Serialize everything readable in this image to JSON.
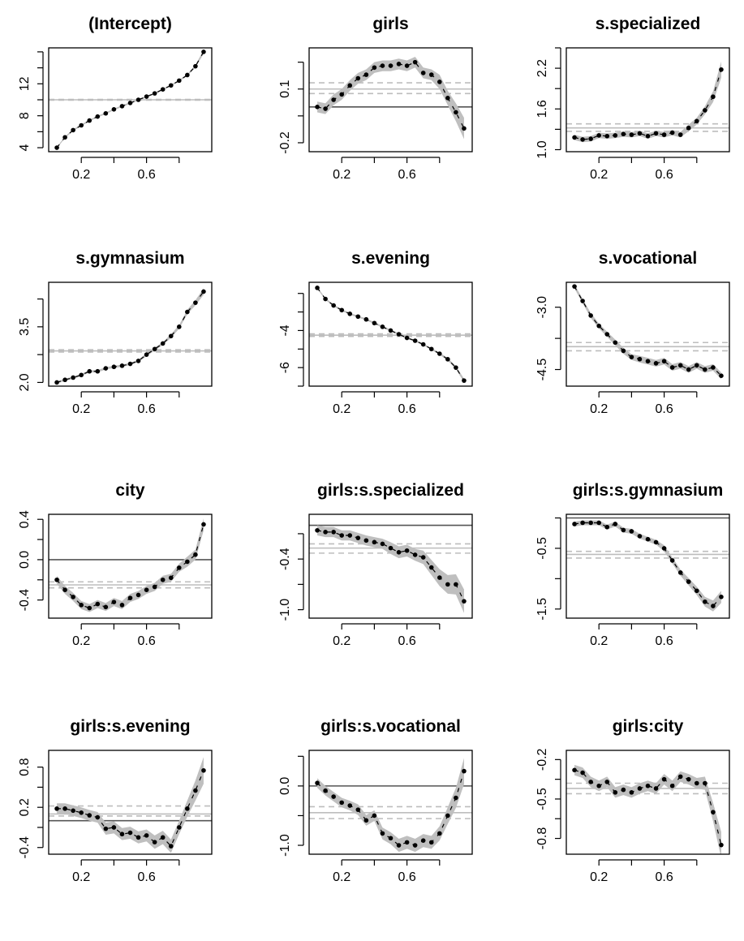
{
  "chart_data": [
    {
      "type": "line",
      "title": "(Intercept)",
      "xlim": [
        0,
        1
      ],
      "ylim": [
        3.5,
        16.5
      ],
      "xticks": [
        0.2,
        0.6
      ],
      "yticks": [
        4,
        8,
        12
      ],
      "ytick_labels": [
        "4",
        "8",
        "12"
      ],
      "ref_lines": {
        "zero": null,
        "estimate": 10.0,
        "ci": [
          9.95,
          10.05
        ]
      },
      "x": [
        0.05,
        0.1,
        0.15,
        0.2,
        0.25,
        0.3,
        0.35,
        0.4,
        0.45,
        0.5,
        0.55,
        0.6,
        0.65,
        0.7,
        0.75,
        0.8,
        0.85,
        0.9,
        0.95
      ],
      "values": [
        4.0,
        5.3,
        6.2,
        6.8,
        7.4,
        7.9,
        8.3,
        8.8,
        9.2,
        9.6,
        10.0,
        10.4,
        10.8,
        11.3,
        11.8,
        12.4,
        13.1,
        14.2,
        16.0
      ],
      "band_halfwidth": [
        0.1,
        0.1,
        0.1,
        0.1,
        0.1,
        0.1,
        0.1,
        0.1,
        0.1,
        0.1,
        0.1,
        0.1,
        0.1,
        0.1,
        0.1,
        0.1,
        0.1,
        0.15,
        0.25
      ]
    },
    {
      "type": "line",
      "title": "girls",
      "xlim": [
        0,
        1
      ],
      "ylim": [
        -0.25,
        0.33
      ],
      "xticks": [
        0.2,
        0.6
      ],
      "yticks": [
        -0.2,
        0.1
      ],
      "ytick_labels": [
        "-0.2",
        "0.1"
      ],
      "ref_lines": {
        "zero": 0,
        "estimate": 0.1,
        "ci": [
          0.075,
          0.135
        ]
      },
      "x": [
        0.05,
        0.1,
        0.15,
        0.2,
        0.25,
        0.3,
        0.35,
        0.4,
        0.45,
        0.5,
        0.55,
        0.6,
        0.65,
        0.7,
        0.75,
        0.8,
        0.85,
        0.9,
        0.95
      ],
      "values": [
        0.0,
        -0.01,
        0.04,
        0.07,
        0.12,
        0.16,
        0.18,
        0.22,
        0.23,
        0.23,
        0.24,
        0.23,
        0.25,
        0.19,
        0.18,
        0.14,
        0.05,
        -0.03,
        -0.12
      ],
      "band_halfwidth": [
        0.03,
        0.03,
        0.03,
        0.03,
        0.03,
        0.03,
        0.03,
        0.03,
        0.03,
        0.03,
        0.03,
        0.03,
        0.03,
        0.03,
        0.03,
        0.04,
        0.04,
        0.05,
        0.06
      ]
    },
    {
      "type": "line",
      "title": "s.specialized",
      "xlim": [
        0,
        1
      ],
      "ylim": [
        0.97,
        2.5
      ],
      "xticks": [
        0.2,
        0.6
      ],
      "yticks": [
        1.0,
        1.6,
        2.2
      ],
      "ytick_labels": [
        "1.0",
        "1.6",
        "2.2"
      ],
      "ref_lines": {
        "zero": null,
        "estimate": 1.32,
        "ci": [
          1.27,
          1.38
        ]
      },
      "x": [
        0.05,
        0.1,
        0.15,
        0.2,
        0.25,
        0.3,
        0.35,
        0.4,
        0.45,
        0.5,
        0.55,
        0.6,
        0.65,
        0.7,
        0.75,
        0.8,
        0.85,
        0.9,
        0.95
      ],
      "values": [
        1.18,
        1.15,
        1.16,
        1.21,
        1.2,
        1.21,
        1.23,
        1.22,
        1.24,
        1.2,
        1.24,
        1.22,
        1.25,
        1.22,
        1.32,
        1.42,
        1.58,
        1.78,
        2.18
      ],
      "band_halfwidth": [
        0.04,
        0.04,
        0.04,
        0.04,
        0.04,
        0.04,
        0.04,
        0.04,
        0.04,
        0.04,
        0.04,
        0.04,
        0.04,
        0.04,
        0.05,
        0.05,
        0.06,
        0.08,
        0.12
      ]
    },
    {
      "type": "line",
      "title": "s.gymnasium",
      "xlim": [
        0,
        1
      ],
      "ylim": [
        1.9,
        4.7
      ],
      "xticks": [
        0.2,
        0.6
      ],
      "yticks": [
        2.0,
        3.5
      ],
      "ytick_labels": [
        "2.0",
        "3.5"
      ],
      "ref_lines": {
        "zero": null,
        "estimate": 2.85,
        "ci": [
          2.82,
          2.88
        ]
      },
      "x": [
        0.05,
        0.1,
        0.15,
        0.2,
        0.25,
        0.3,
        0.35,
        0.4,
        0.45,
        0.5,
        0.55,
        0.6,
        0.65,
        0.7,
        0.75,
        0.8,
        0.85,
        0.9,
        0.95
      ],
      "values": [
        2.0,
        2.07,
        2.13,
        2.2,
        2.3,
        2.3,
        2.38,
        2.42,
        2.45,
        2.5,
        2.58,
        2.75,
        2.9,
        3.05,
        3.25,
        3.5,
        3.9,
        4.15,
        4.45
      ],
      "band_halfwidth": [
        0.03,
        0.03,
        0.03,
        0.03,
        0.03,
        0.03,
        0.03,
        0.03,
        0.03,
        0.03,
        0.03,
        0.04,
        0.04,
        0.04,
        0.05,
        0.05,
        0.06,
        0.07,
        0.09
      ]
    },
    {
      "type": "line",
      "title": "s.evening",
      "xlim": [
        0,
        1
      ],
      "ylim": [
        -7.0,
        -1.4
      ],
      "xticks": [
        0.2,
        0.6
      ],
      "yticks": [
        -6,
        -4
      ],
      "ytick_labels": [
        "-6",
        "-4"
      ],
      "ref_lines": {
        "zero": null,
        "estimate": -4.25,
        "ci": [
          -4.32,
          -4.18
        ]
      },
      "x": [
        0.05,
        0.1,
        0.15,
        0.2,
        0.25,
        0.3,
        0.35,
        0.4,
        0.45,
        0.5,
        0.55,
        0.6,
        0.65,
        0.7,
        0.75,
        0.8,
        0.85,
        0.9,
        0.95
      ],
      "values": [
        -1.7,
        -2.3,
        -2.65,
        -2.9,
        -3.1,
        -3.25,
        -3.4,
        -3.6,
        -3.8,
        -4.0,
        -4.2,
        -4.4,
        -4.55,
        -4.75,
        -5.0,
        -5.25,
        -5.55,
        -6.0,
        -6.7
      ],
      "band_halfwidth": [
        0.05,
        0.05,
        0.05,
        0.05,
        0.05,
        0.05,
        0.05,
        0.05,
        0.05,
        0.05,
        0.05,
        0.05,
        0.05,
        0.05,
        0.05,
        0.06,
        0.07,
        0.08,
        0.1
      ]
    },
    {
      "type": "line",
      "title": "s.vocational",
      "xlim": [
        0,
        1
      ],
      "ylim": [
        -4.9,
        -2.4
      ],
      "xticks": [
        0.2,
        0.6
      ],
      "yticks": [
        -4.5,
        -3.0
      ],
      "ytick_labels": [
        "-4.5",
        "-3.0"
      ],
      "ref_lines": {
        "zero": null,
        "estimate": -3.95,
        "ci": [
          -4.05,
          -3.85
        ]
      },
      "x": [
        0.05,
        0.1,
        0.15,
        0.2,
        0.25,
        0.3,
        0.35,
        0.4,
        0.45,
        0.5,
        0.55,
        0.6,
        0.65,
        0.7,
        0.75,
        0.8,
        0.85,
        0.9,
        0.95
      ],
      "values": [
        -2.5,
        -2.85,
        -3.2,
        -3.45,
        -3.65,
        -3.85,
        -4.05,
        -4.2,
        -4.25,
        -4.3,
        -4.35,
        -4.3,
        -4.45,
        -4.4,
        -4.5,
        -4.4,
        -4.5,
        -4.45,
        -4.65
      ],
      "band_halfwidth": [
        0.05,
        0.05,
        0.06,
        0.06,
        0.06,
        0.07,
        0.07,
        0.07,
        0.08,
        0.08,
        0.08,
        0.08,
        0.08,
        0.08,
        0.08,
        0.08,
        0.08,
        0.08,
        0.08
      ]
    },
    {
      "type": "line",
      "title": "city",
      "xlim": [
        0,
        1
      ],
      "ylim": [
        -0.58,
        0.45
      ],
      "xticks": [
        0.2,
        0.6
      ],
      "yticks": [
        -0.4,
        0.0,
        0.4
      ],
      "ytick_labels": [
        "-0.4",
        "0.0",
        "0.4"
      ],
      "ref_lines": {
        "zero": 0,
        "estimate": -0.25,
        "ci": [
          -0.28,
          -0.22
        ]
      },
      "x": [
        0.05,
        0.1,
        0.15,
        0.2,
        0.25,
        0.3,
        0.35,
        0.4,
        0.45,
        0.5,
        0.55,
        0.6,
        0.65,
        0.7,
        0.75,
        0.8,
        0.85,
        0.9,
        0.95
      ],
      "values": [
        -0.2,
        -0.3,
        -0.37,
        -0.45,
        -0.48,
        -0.44,
        -0.47,
        -0.42,
        -0.45,
        -0.38,
        -0.35,
        -0.3,
        -0.27,
        -0.2,
        -0.18,
        -0.08,
        -0.02,
        0.05,
        0.35
      ],
      "band_halfwidth": [
        0.04,
        0.04,
        0.04,
        0.04,
        0.04,
        0.04,
        0.04,
        0.04,
        0.04,
        0.04,
        0.04,
        0.04,
        0.04,
        0.04,
        0.04,
        0.04,
        0.05,
        0.05,
        0.06
      ]
    },
    {
      "type": "line",
      "title": "girls:s.specialized",
      "xlim": [
        0,
        1
      ],
      "ylim": [
        -1.1,
        0.13
      ],
      "xticks": [
        0.2,
        0.6
      ],
      "yticks": [
        -1.0,
        -0.4
      ],
      "ytick_labels": [
        "-1.0",
        "-0.4"
      ],
      "ref_lines": {
        "zero": 0,
        "estimate": -0.27,
        "ci": [
          -0.22,
          -0.33
        ]
      },
      "x": [
        0.05,
        0.1,
        0.15,
        0.2,
        0.25,
        0.3,
        0.35,
        0.4,
        0.45,
        0.5,
        0.55,
        0.6,
        0.65,
        0.7,
        0.75,
        0.8,
        0.85,
        0.9,
        0.95
      ],
      "values": [
        -0.06,
        -0.08,
        -0.08,
        -0.12,
        -0.12,
        -0.15,
        -0.18,
        -0.2,
        -0.22,
        -0.27,
        -0.32,
        -0.3,
        -0.35,
        -0.38,
        -0.5,
        -0.62,
        -0.7,
        -0.7,
        -0.9
      ],
      "band_halfwidth": [
        0.06,
        0.06,
        0.06,
        0.06,
        0.06,
        0.06,
        0.06,
        0.06,
        0.06,
        0.07,
        0.07,
        0.07,
        0.07,
        0.08,
        0.09,
        0.1,
        0.11,
        0.12,
        0.14
      ]
    },
    {
      "type": "line",
      "title": "girls:s.gymnasium",
      "xlim": [
        0,
        1
      ],
      "ylim": [
        -1.65,
        0.06
      ],
      "xticks": [
        0.2,
        0.6
      ],
      "yticks": [
        -1.5,
        -0.5
      ],
      "ytick_labels": [
        "-1.5",
        "-0.5"
      ],
      "ref_lines": {
        "zero": 0,
        "estimate": -0.6,
        "ci": [
          -0.55,
          -0.66
        ]
      },
      "x": [
        0.05,
        0.1,
        0.15,
        0.2,
        0.25,
        0.3,
        0.35,
        0.4,
        0.45,
        0.5,
        0.55,
        0.6,
        0.65,
        0.7,
        0.75,
        0.8,
        0.85,
        0.9,
        0.95
      ],
      "values": [
        -0.1,
        -0.08,
        -0.08,
        -0.08,
        -0.15,
        -0.1,
        -0.2,
        -0.22,
        -0.3,
        -0.35,
        -0.4,
        -0.5,
        -0.7,
        -0.9,
        -1.05,
        -1.2,
        -1.38,
        -1.45,
        -1.3
      ],
      "band_halfwidth": [
        0.04,
        0.04,
        0.04,
        0.04,
        0.04,
        0.04,
        0.04,
        0.04,
        0.04,
        0.04,
        0.04,
        0.05,
        0.05,
        0.05,
        0.06,
        0.07,
        0.08,
        0.09,
        0.1
      ]
    },
    {
      "type": "line",
      "title": "girls:s.evening",
      "xlim": [
        0,
        1
      ],
      "ylim": [
        -0.5,
        1.05
      ],
      "xticks": [
        0.2,
        0.6
      ],
      "yticks": [
        -0.4,
        0.2,
        0.8
      ],
      "ytick_labels": [
        "-0.4",
        "0.2",
        "0.8"
      ],
      "ref_lines": {
        "zero": 0,
        "estimate": 0.1,
        "ci": [
          0.07,
          0.22
        ]
      },
      "x": [
        0.05,
        0.1,
        0.15,
        0.2,
        0.25,
        0.3,
        0.35,
        0.4,
        0.45,
        0.5,
        0.55,
        0.6,
        0.65,
        0.7,
        0.75,
        0.8,
        0.85,
        0.9,
        0.95
      ],
      "values": [
        0.18,
        0.18,
        0.15,
        0.12,
        0.08,
        0.05,
        -0.12,
        -0.1,
        -0.2,
        -0.18,
        -0.25,
        -0.22,
        -0.32,
        -0.25,
        -0.38,
        -0.1,
        0.18,
        0.45,
        0.75
      ],
      "band_halfwidth": [
        0.08,
        0.08,
        0.08,
        0.08,
        0.08,
        0.08,
        0.09,
        0.09,
        0.09,
        0.09,
        0.09,
        0.09,
        0.1,
        0.1,
        0.1,
        0.1,
        0.12,
        0.15,
        0.2
      ]
    },
    {
      "type": "line",
      "title": "girls:s.vocational",
      "xlim": [
        0,
        1
      ],
      "ylim": [
        -1.15,
        0.6
      ],
      "xticks": [
        0.2,
        0.6
      ],
      "yticks": [
        -1.0,
        0.0
      ],
      "ytick_labels": [
        "-1.0",
        "0.0"
      ],
      "ref_lines": {
        "zero": 0,
        "estimate": -0.45,
        "ci": [
          -0.35,
          -0.55
        ]
      },
      "x": [
        0.05,
        0.1,
        0.15,
        0.2,
        0.25,
        0.3,
        0.35,
        0.4,
        0.45,
        0.5,
        0.55,
        0.6,
        0.65,
        0.7,
        0.75,
        0.8,
        0.85,
        0.9,
        0.95
      ],
      "values": [
        0.05,
        -0.08,
        -0.18,
        -0.28,
        -0.33,
        -0.4,
        -0.58,
        -0.5,
        -0.8,
        -0.88,
        -1.0,
        -0.95,
        -1.0,
        -0.92,
        -0.95,
        -0.8,
        -0.5,
        -0.2,
        0.25
      ],
      "band_halfwidth": [
        0.08,
        0.08,
        0.08,
        0.08,
        0.08,
        0.09,
        0.09,
        0.09,
        0.1,
        0.1,
        0.11,
        0.11,
        0.11,
        0.11,
        0.11,
        0.12,
        0.14,
        0.17,
        0.22
      ]
    },
    {
      "type": "line",
      "title": "girls:city",
      "xlim": [
        0,
        1
      ],
      "ylim": [
        -0.92,
        -0.13
      ],
      "xticks": [
        0.2,
        0.6
      ],
      "yticks": [
        -0.8,
        -0.5,
        -0.2
      ],
      "ytick_labels": [
        "-0.8",
        "-0.5",
        "-0.2"
      ],
      "ref_lines": {
        "zero": null,
        "estimate": -0.42,
        "ci": [
          -0.38,
          -0.46
        ]
      },
      "x": [
        0.05,
        0.1,
        0.15,
        0.2,
        0.25,
        0.3,
        0.35,
        0.4,
        0.45,
        0.5,
        0.55,
        0.6,
        0.65,
        0.7,
        0.75,
        0.8,
        0.85,
        0.9,
        0.95
      ],
      "values": [
        -0.28,
        -0.3,
        -0.37,
        -0.4,
        -0.37,
        -0.45,
        -0.43,
        -0.45,
        -0.42,
        -0.4,
        -0.42,
        -0.35,
        -0.4,
        -0.33,
        -0.35,
        -0.38,
        -0.38,
        -0.6,
        -0.85
      ],
      "band_halfwidth": [
        0.04,
        0.04,
        0.04,
        0.04,
        0.04,
        0.04,
        0.04,
        0.04,
        0.04,
        0.04,
        0.04,
        0.04,
        0.04,
        0.04,
        0.04,
        0.04,
        0.05,
        0.07,
        0.1
      ]
    }
  ]
}
